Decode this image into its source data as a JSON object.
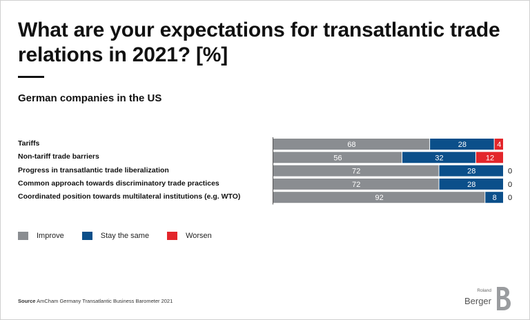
{
  "title": "What are your expectations for transatlantic trade relations in 2021? [%]",
  "subtitle": "German companies in the US",
  "colors": {
    "improve": "#8a8d91",
    "same": "#0b4f8a",
    "worsen": "#e3262b"
  },
  "chart_data": {
    "type": "bar",
    "orientation": "horizontal",
    "stacked": true,
    "categories": [
      "Tariffs",
      "Non-tariff trade barriers",
      "Progress in transatlantic trade liberalization",
      "Common approach towards discriminatory trade practices",
      "Coordinated position towards multilateral institutions (e.g. WTO)"
    ],
    "series": [
      {
        "name": "Improve",
        "values": [
          68,
          56,
          72,
          72,
          92
        ]
      },
      {
        "name": "Stay the same",
        "values": [
          28,
          32,
          28,
          28,
          8
        ]
      },
      {
        "name": "Worsen",
        "values": [
          4,
          12,
          0,
          0,
          0
        ]
      }
    ],
    "xlim": [
      0,
      100
    ],
    "grid": false,
    "legend_position": "bottom-left"
  },
  "legend": [
    "Improve",
    "Stay the same",
    "Worsen"
  ],
  "source": {
    "label": "Source",
    "text": "AmCham Germany Transatlantic Business Barometer 2021"
  },
  "logo": {
    "small": "Roland",
    "main": "Berger"
  }
}
